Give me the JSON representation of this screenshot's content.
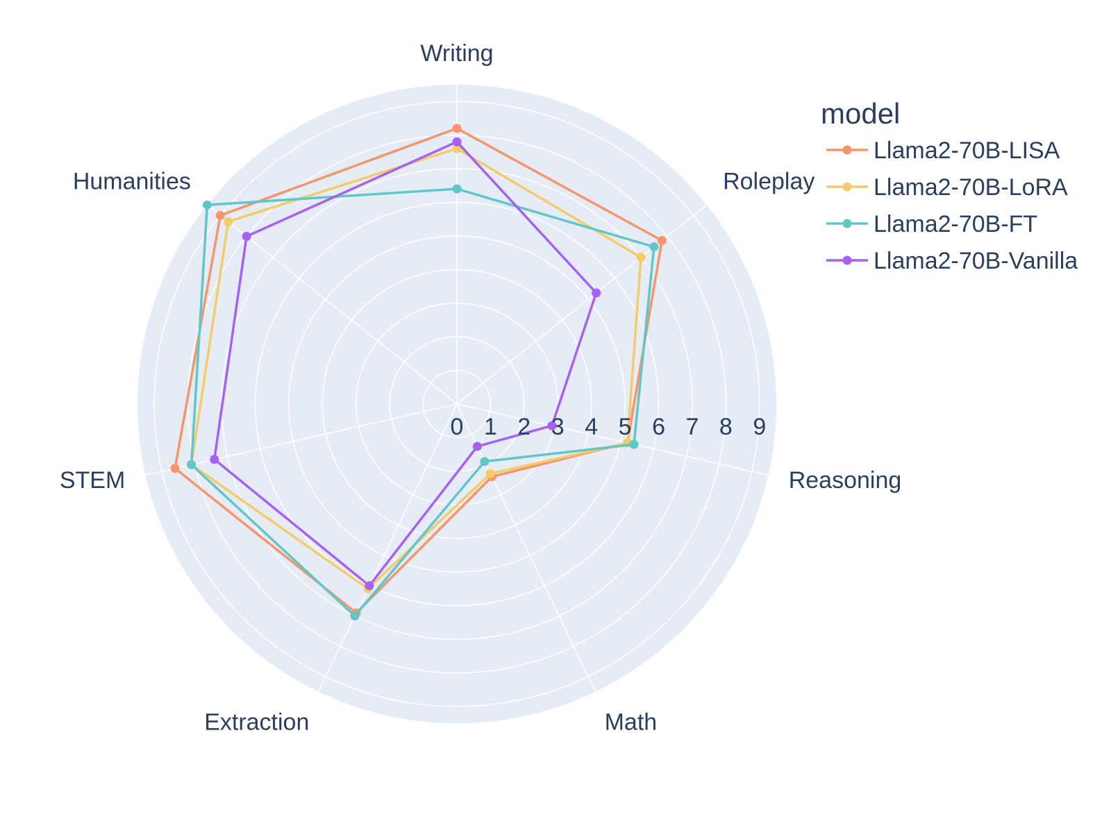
{
  "chart_data": {
    "type": "radar",
    "categories": [
      "Writing",
      "Roleplay",
      "Reasoning",
      "Math",
      "Extraction",
      "STEM",
      "Humanities"
    ],
    "radial_range": [
      0,
      9.5
    ],
    "radial_ticks": [
      "0",
      "1",
      "2",
      "3",
      "4",
      "5",
      "6",
      "7",
      "8",
      "9"
    ],
    "grid": true,
    "background_color": "#e5ecf6",
    "grid_color": "#ffffff",
    "legend": {
      "title": "model",
      "position": "right"
    },
    "series": [
      {
        "name": "Llama2-70B-LISA",
        "color": "#f4956a",
        "values": [
          8.2,
          7.8,
          5.2,
          2.4,
          6.9,
          8.6,
          9.0
        ]
      },
      {
        "name": "Llama2-70B-LoRA",
        "color": "#f5cb6a",
        "values": [
          7.6,
          7.0,
          5.2,
          2.3,
          6.1,
          8.1,
          8.7
        ]
      },
      {
        "name": "Llama2-70B-FT",
        "color": "#60c6c8",
        "values": [
          6.4,
          7.5,
          5.4,
          1.9,
          7.0,
          8.1,
          9.5
        ]
      },
      {
        "name": "Llama2-70B-Vanilla",
        "color": "#a561f4",
        "values": [
          7.8,
          5.3,
          2.9,
          1.4,
          6.0,
          7.4,
          8.0
        ]
      }
    ]
  }
}
